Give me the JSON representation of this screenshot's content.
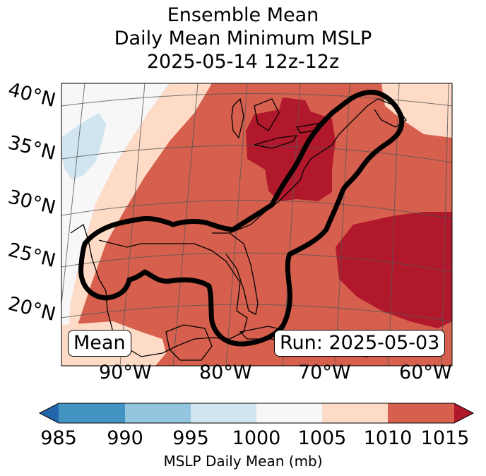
{
  "title": {
    "line1": "Ensemble Mean",
    "line2": "Daily Mean Minimum MSLP",
    "line3": "2025-05-14 12z-12z"
  },
  "map": {
    "lat_labels": [
      "40°N",
      "35°N",
      "30°N",
      "25°N",
      "20°N"
    ],
    "lon_labels": [
      "90°W",
      "80°W",
      "70°W",
      "60°W"
    ],
    "box_left": "Mean",
    "box_right": "Run: 2025-05-03"
  },
  "colorbar": {
    "ticks": [
      "985",
      "990",
      "995",
      "1000",
      "1005",
      "1010",
      "1015"
    ],
    "label": "MSLP Daily Mean (mb)",
    "colors": [
      "#2166ac",
      "#4393c3",
      "#92c5de",
      "#d1e5f0",
      "#f7f7f7",
      "#fddbc7",
      "#d6604d",
      "#b2182b"
    ]
  }
}
